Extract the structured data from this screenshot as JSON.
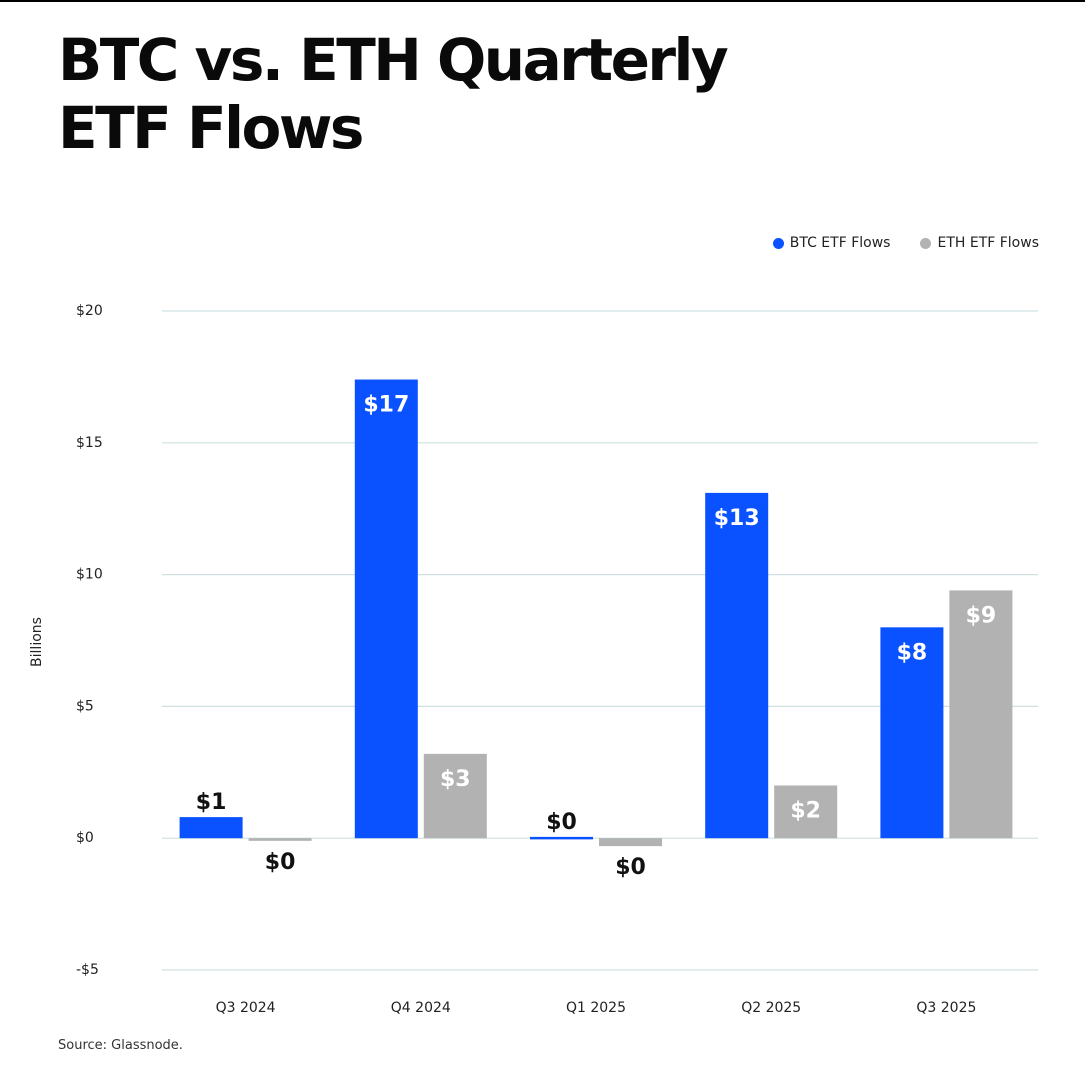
{
  "header": {
    "title_line1": "BTC vs. ETH  Quarterly",
    "title_line2": "ETF Flows"
  },
  "footer": {
    "source": "Source: Glassnode."
  },
  "colors": {
    "btc": "#0a52ff",
    "eth": "#b2b2b2",
    "grid": "#cfe0e0",
    "label_inside": "#ffffff",
    "label_outside": "#111111"
  },
  "chart_data": {
    "type": "bar",
    "categories": [
      "Q3 2024",
      "Q4 2024",
      "Q1 2025",
      "Q2 2025",
      "Q3 2025"
    ],
    "series": [
      {
        "name": "BTC ETF Flows",
        "values": [
          0.8,
          17.4,
          0.05,
          13.1,
          8.0
        ],
        "labels": [
          "$1",
          "$17",
          "$0",
          "$13",
          "$8"
        ]
      },
      {
        "name": "ETH ETF Flows",
        "values": [
          -0.1,
          3.2,
          -0.3,
          2.0,
          9.4
        ],
        "labels": [
          "$0",
          "$3",
          "$0",
          "$2",
          "$9"
        ]
      }
    ],
    "ylabel": "Billions",
    "xlabel": "",
    "ylim": [
      -5,
      20
    ],
    "yticks": [
      20,
      15,
      10,
      5,
      0,
      -5
    ],
    "ytick_labels": [
      "$20",
      "$15",
      "$10",
      "$5",
      "$0",
      "-$5"
    ],
    "grid": true,
    "legend": "top-right"
  }
}
